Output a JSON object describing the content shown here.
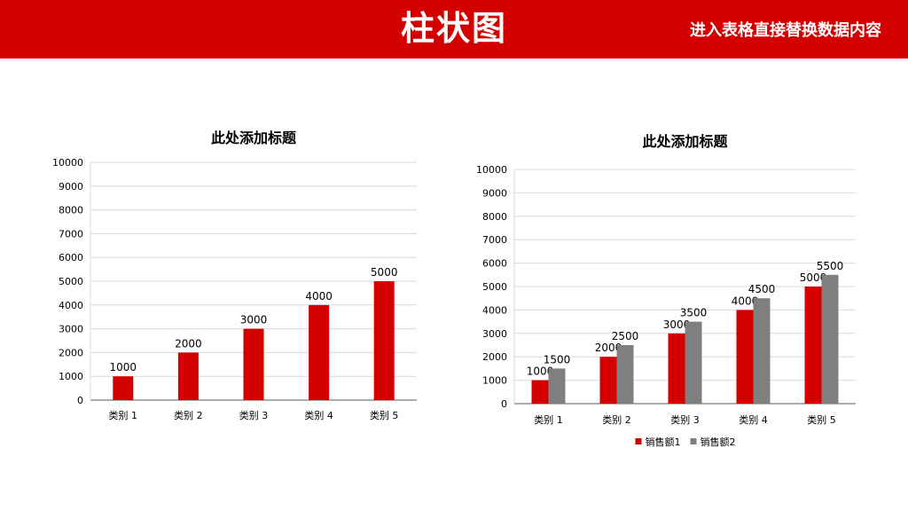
{
  "header": {
    "title": "柱状图",
    "subtitle": "进入表格直接替换数据内容"
  },
  "colors": {
    "header_bg": "#d40000",
    "series1": "#d40000",
    "series2": "#7f7f7f",
    "grid": "#d9d9d9",
    "axis": "#595959"
  },
  "chart_data": [
    {
      "type": "bar",
      "title": "此处添加标题",
      "categories": [
        "类别 1",
        "类别 2",
        "类别 3",
        "类别 4",
        "类别 5"
      ],
      "series": [
        {
          "values": [
            1000,
            2000,
            3000,
            4000,
            5000
          ]
        }
      ],
      "ylim": [
        0,
        10000
      ],
      "yticks": [
        0,
        1000,
        2000,
        3000,
        4000,
        5000,
        6000,
        7000,
        8000,
        9000,
        10000
      ],
      "grid": true,
      "legend": "none",
      "data_labels": true
    },
    {
      "type": "bar",
      "title": "此处添加标题",
      "categories": [
        "类别 1",
        "类别 2",
        "类别 3",
        "类别 4",
        "类别 5"
      ],
      "series": [
        {
          "name": "销售额1",
          "values": [
            1000,
            2000,
            3000,
            4000,
            5000
          ]
        },
        {
          "name": "销售额2",
          "values": [
            1500,
            2500,
            3500,
            4500,
            5500
          ]
        }
      ],
      "ylim": [
        0,
        10000
      ],
      "yticks": [
        0,
        1000,
        2000,
        3000,
        4000,
        5000,
        6000,
        7000,
        8000,
        9000,
        10000
      ],
      "grid": true,
      "legend": "bottom",
      "data_labels": true
    }
  ]
}
